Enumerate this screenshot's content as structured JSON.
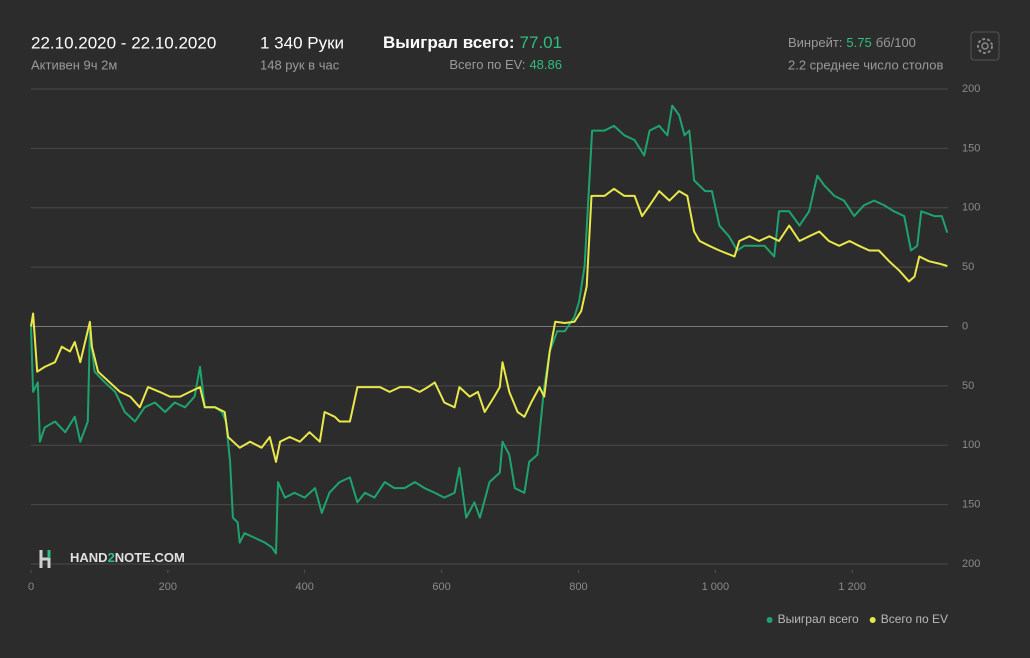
{
  "header": {
    "date_range": "22.10.2020 - 22.10.2020",
    "active": "Активен 9ч 2м",
    "hands": "1 340 Руки",
    "hands_per_hour": "148 рук в час",
    "won_label": "Выиграл всего:",
    "won_value": "77.01",
    "ev_label": "Всего по EV:",
    "ev_value": "48.86",
    "winrate_label": "Винрейт:",
    "winrate_value": "5.75",
    "winrate_unit": "бб/100",
    "tables": "2.2 среднее число столов",
    "logo": [
      "HAND",
      "2",
      "NOTE.COM"
    ]
  },
  "chart_data": {
    "type": "line",
    "xlim": [
      0,
      1340
    ],
    "ylim": [
      -205,
      200
    ],
    "xticks": [
      0,
      200,
      400,
      600,
      800,
      {
        "value": 1000,
        "label": "1 000"
      },
      {
        "value": 1200,
        "label": "1 200"
      }
    ],
    "yticks": [
      {
        "value": -200,
        "label": "200"
      },
      {
        "value": -150,
        "label": "150"
      },
      {
        "value": -100,
        "label": "100"
      },
      {
        "value": -50,
        "label": "50"
      },
      0,
      50,
      100,
      150,
      200
    ],
    "grid": true,
    "legend": "bottom-right",
    "series": [
      {
        "name": "Выиграл всего",
        "color": "#1fa36e",
        "x": [
          0,
          3,
          10,
          13,
          20,
          35,
          50,
          64,
          72,
          83,
          86,
          93,
          108,
          123,
          137,
          152,
          166,
          181,
          196,
          210,
          225,
          239,
          247,
          254,
          269,
          279,
          285,
          291,
          295,
          302,
          305,
          312,
          327,
          342,
          352,
          358,
          361,
          371,
          385,
          400,
          415,
          425,
          436,
          451,
          466,
          477,
          488,
          502,
          517,
          531,
          546,
          561,
          575,
          590,
          604,
          619,
          626,
          636,
          648,
          656,
          670,
          685,
          689,
          699,
          707,
          721,
          728,
          740,
          750,
          758,
          769,
          780,
          794,
          801,
          809,
          816,
          820,
          838,
          852,
          867,
          882,
          896,
          904,
          918,
          930,
          937,
          947,
          955,
          962,
          969,
          985,
          995,
          1006,
          1020,
          1032,
          1042,
          1057,
          1072,
          1086,
          1093,
          1108,
          1123,
          1137,
          1149,
          1159,
          1174,
          1188,
          1203,
          1217,
          1232,
          1247,
          1261,
          1276,
          1286,
          1295,
          1301,
          1320,
          1331,
          1339
        ],
        "values": [
          0,
          -55,
          -47,
          -97,
          -85,
          -80,
          -89,
          -76,
          -97,
          -80,
          -4,
          -38,
          -47,
          -55,
          -72,
          -80,
          -68,
          -64,
          -72,
          -64,
          -68,
          -59,
          -34,
          -68,
          -68,
          -72,
          -80,
          -114,
          -161,
          -165,
          -182,
          -174,
          -178,
          -182,
          -186,
          -191,
          -131,
          -144,
          -140,
          -144,
          -136,
          -157,
          -140,
          -131,
          -127,
          -148,
          -140,
          -144,
          -131,
          -136,
          -136,
          -131,
          -136,
          -140,
          -144,
          -140,
          -119,
          -161,
          -148,
          -161,
          -131,
          -123,
          -97,
          -108,
          -136,
          -140,
          -114,
          -108,
          -51,
          -21,
          -4,
          -4,
          8,
          21,
          51,
          123,
          165,
          165,
          169,
          161,
          157,
          144,
          165,
          169,
          161,
          186,
          178,
          161,
          165,
          123,
          114,
          114,
          85,
          76,
          64,
          68,
          68,
          68,
          59,
          97,
          97,
          85,
          97,
          127,
          119,
          110,
          106,
          93,
          102,
          106,
          102,
          97,
          93,
          64,
          68,
          97,
          93,
          93,
          79
        ]
      },
      {
        "name": "Всего по EV",
        "color": "#e8e84a",
        "x": [
          0,
          3,
          9,
          20,
          35,
          45,
          57,
          64,
          72,
          79,
          86,
          89,
          98,
          115,
          130,
          145,
          159,
          171,
          188,
          203,
          218,
          232,
          247,
          254,
          269,
          283,
          288,
          305,
          320,
          337,
          349,
          358,
          364,
          378,
          393,
          407,
          422,
          429,
          444,
          451,
          466,
          477,
          495,
          510,
          524,
          539,
          553,
          568,
          580,
          590,
          604,
          619,
          626,
          641,
          653,
          663,
          677,
          685,
          689,
          699,
          711,
          721,
          731,
          743,
          750,
          758,
          766,
          780,
          794,
          804,
          812,
          819,
          838,
          852,
          867,
          882,
          893,
          904,
          918,
          933,
          947,
          959,
          969,
          977,
          991,
          1006,
          1028,
          1035,
          1050,
          1064,
          1079,
          1093,
          1108,
          1123,
          1137,
          1152,
          1166,
          1181,
          1196,
          1210,
          1225,
          1239,
          1254,
          1269,
          1283,
          1291,
          1298,
          1312,
          1327,
          1339
        ],
        "values": [
          0,
          11,
          -38,
          -34,
          -30,
          -17,
          -21,
          -13,
          -30,
          -13,
          4,
          -17,
          -38,
          -47,
          -55,
          -59,
          -68,
          -51,
          -55,
          -59,
          -59,
          -55,
          -51,
          -68,
          -68,
          -72,
          -93,
          -102,
          -97,
          -102,
          -93,
          -114,
          -97,
          -93,
          -97,
          -89,
          -97,
          -72,
          -76,
          -80,
          -80,
          -51,
          -51,
          -51,
          -55,
          -51,
          -51,
          -55,
          -51,
          -47,
          -64,
          -68,
          -51,
          -59,
          -55,
          -72,
          -59,
          -51,
          -30,
          -55,
          -72,
          -76,
          -64,
          -51,
          -59,
          -21,
          4,
          3,
          4,
          13,
          34,
          110,
          110,
          116,
          110,
          110,
          93,
          102,
          114,
          106,
          114,
          110,
          80,
          72,
          68,
          64,
          59,
          72,
          76,
          72,
          76,
          72,
          85,
          72,
          76,
          80,
          72,
          68,
          72,
          68,
          64,
          64,
          55,
          47,
          38,
          42,
          59,
          55,
          53,
          51
        ]
      }
    ]
  }
}
